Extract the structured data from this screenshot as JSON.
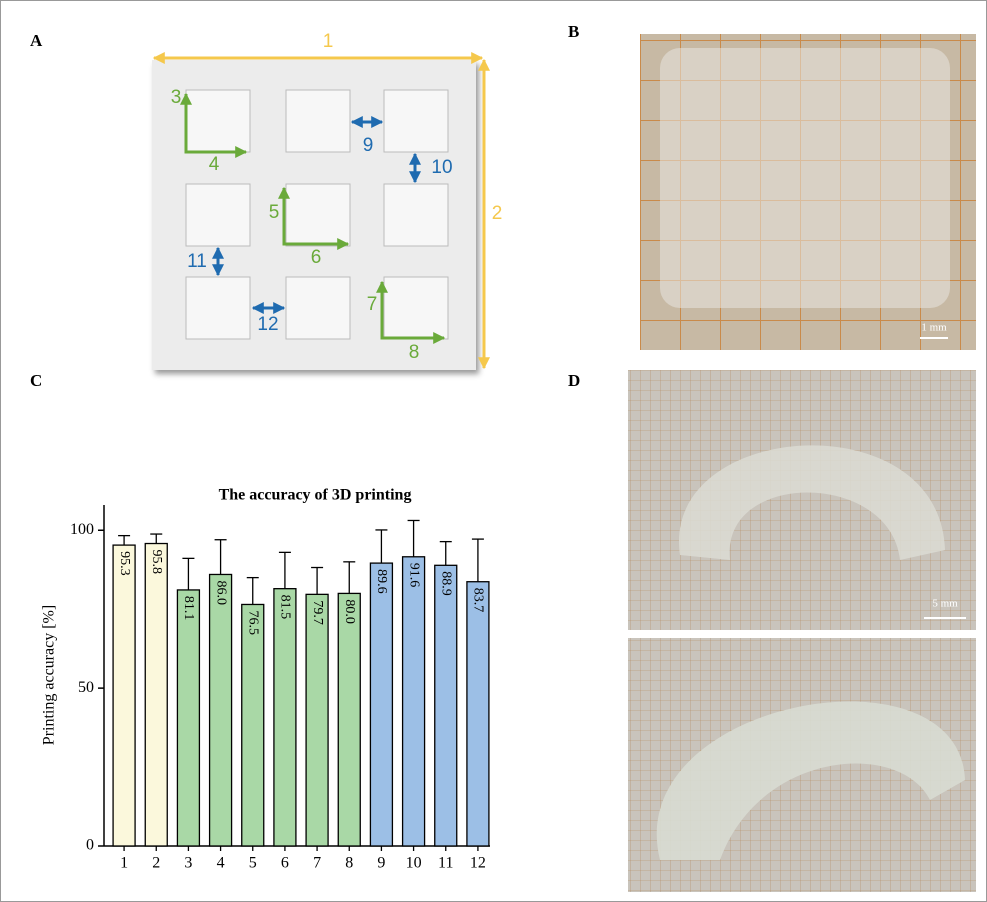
{
  "panels": {
    "a": {
      "label": "A",
      "annotations": [
        "1",
        "2",
        "3",
        "4",
        "5",
        "6",
        "7",
        "8",
        "9",
        "10",
        "11",
        "12"
      ]
    },
    "b": {
      "label": "B",
      "scale_bar": "1 mm"
    },
    "c": {
      "label": "C"
    },
    "d": {
      "label": "D",
      "scale_bar": "5 mm"
    }
  },
  "chart_data": {
    "type": "bar",
    "title": "The accuracy of 3D printing",
    "y_label": "Printing accuracy [%]",
    "categories": [
      "1",
      "2",
      "3",
      "4",
      "5",
      "6",
      "7",
      "8",
      "9",
      "10",
      "11",
      "12"
    ],
    "values": [
      95.3,
      95.8,
      81.1,
      86.0,
      76.5,
      81.5,
      79.7,
      80.0,
      89.6,
      91.6,
      88.9,
      83.7
    ],
    "value_labels": [
      "95.3",
      "95.8",
      "81.1",
      "86.0",
      "76.5",
      "81.5",
      "79.7",
      "80.0",
      "89.6",
      "91.6",
      "88.9",
      "83.7"
    ],
    "errors": [
      3,
      3,
      10,
      11,
      8.5,
      11.5,
      8.5,
      10,
      10.5,
      11.5,
      7.5,
      13.5
    ],
    "colors": [
      "#fbf8dc",
      "#fbf8dc",
      "#a9d8a6",
      "#a9d8a6",
      "#a9d8a6",
      "#a9d8a6",
      "#a9d8a6",
      "#a9d8a6",
      "#9cbfe6",
      "#9cbfe6",
      "#9cbfe6",
      "#9cbfe6"
    ],
    "ylim": [
      0,
      108
    ],
    "yticks": [
      0,
      50,
      100
    ]
  }
}
